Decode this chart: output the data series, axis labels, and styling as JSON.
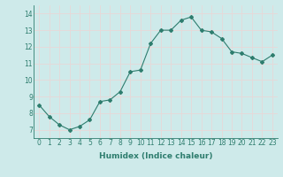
{
  "x": [
    0,
    1,
    2,
    3,
    4,
    5,
    6,
    7,
    8,
    9,
    10,
    11,
    12,
    13,
    14,
    15,
    16,
    17,
    18,
    19,
    20,
    21,
    22,
    23
  ],
  "y": [
    8.5,
    7.8,
    7.3,
    7.0,
    7.2,
    7.6,
    8.7,
    8.8,
    9.3,
    10.5,
    10.6,
    12.2,
    13.0,
    13.0,
    13.6,
    13.8,
    13.0,
    12.9,
    12.5,
    11.7,
    11.6,
    11.35,
    11.1,
    11.5
  ],
  "line_color": "#2e7d6e",
  "marker": "D",
  "markersize": 2.0,
  "linewidth": 0.8,
  "xlabel": "Humidex (Indice chaleur)",
  "ylabel": "",
  "xlim": [
    -0.5,
    23.5
  ],
  "ylim": [
    6.5,
    14.5
  ],
  "yticks": [
    7,
    8,
    9,
    10,
    11,
    12,
    13,
    14
  ],
  "xticks": [
    0,
    1,
    2,
    3,
    4,
    5,
    6,
    7,
    8,
    9,
    10,
    11,
    12,
    13,
    14,
    15,
    16,
    17,
    18,
    19,
    20,
    21,
    22,
    23
  ],
  "background_color": "#ceeaea",
  "grid_color": "#e8d8d8",
  "label_color": "#2e7d6e",
  "xlabel_fontsize": 6.5,
  "tick_fontsize": 5.5
}
